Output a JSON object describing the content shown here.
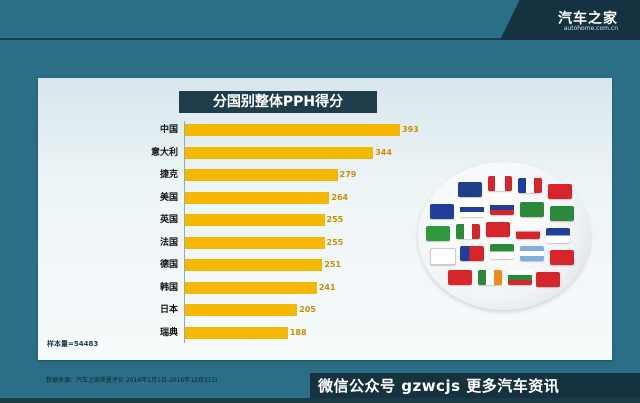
{
  "header": {
    "logo_main": "汽车之家",
    "logo_sub": "autohome.com.cn"
  },
  "chart_data": {
    "type": "bar",
    "title": "分国别整体PPH得分",
    "categories": [
      "中国",
      "意大利",
      "捷克",
      "美国",
      "英国",
      "法国",
      "德国",
      "韩国",
      "日本",
      "瑞典"
    ],
    "values": [
      393,
      344,
      279,
      264,
      255,
      255,
      251,
      241,
      205,
      188
    ],
    "xlim": [
      0,
      400
    ],
    "bar_color": "#f5b800",
    "grid": false,
    "legend": "none"
  },
  "sample_note": "样本量=54483",
  "source": "数据来源：汽车之家质量评价 2016年1月1日-2016年12月31日",
  "promo": "微信公众号 gzwcjs 更多汽车资讯",
  "colors": {
    "background": "#2b6f86",
    "panel": "#eef5f7",
    "title_box": "#1f3d4b",
    "accent": "#f5b800"
  }
}
